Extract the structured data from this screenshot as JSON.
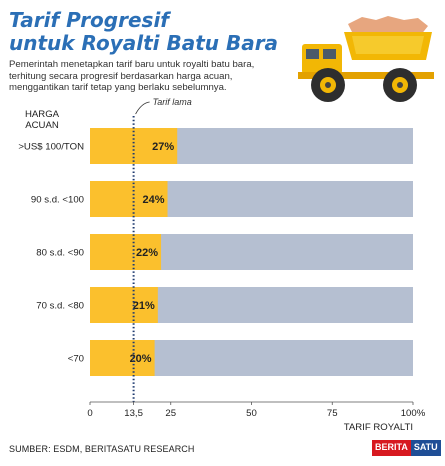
{
  "header": {
    "title_line1": "Tarif Progresif",
    "title_line2": "untuk Royalti Batu Bara",
    "subtitle": "Pemerintah menetapkan tarif baru untuk royalti batu bara, terhitung secara progresif berdasarkan harga acuan, menggantikan tarif tetap yang berlaku sebelumnya."
  },
  "colors": {
    "title": "#2b6fb6",
    "bar": "#fbc02d",
    "track": "#b5bfd1",
    "dotted_line": "#1f3b70"
  },
  "icons": {
    "illustration": "dump-truck-icon"
  },
  "chart_data": {
    "type": "bar",
    "orientation": "horizontal",
    "ylabel_line1": "HARGA",
    "ylabel_line2": "ACUAN",
    "xlabel": "TARIF ROYALTI",
    "categories": [
      ">US$ 100/TON",
      "90 s.d. <100",
      "80 s.d. <90",
      "70 s.d. <80",
      "<70"
    ],
    "values": [
      27,
      24,
      22,
      21,
      20
    ],
    "xlim": [
      0,
      100
    ],
    "xticks": [
      {
        "value": 0,
        "label": "0"
      },
      {
        "value": 13.5,
        "label": "13,5"
      },
      {
        "value": 25,
        "label": "25"
      },
      {
        "value": 50,
        "label": "50"
      },
      {
        "value": 75,
        "label": "75"
      },
      {
        "value": 100,
        "label": "100%"
      }
    ],
    "reference_line": {
      "value": 13.5,
      "label": "Tarif lama"
    }
  },
  "footer": {
    "source": "SUMBER: ESDM, BERITASATU RESEARCH",
    "logo_part1": "BERITA",
    "logo_part2": "SATU"
  }
}
